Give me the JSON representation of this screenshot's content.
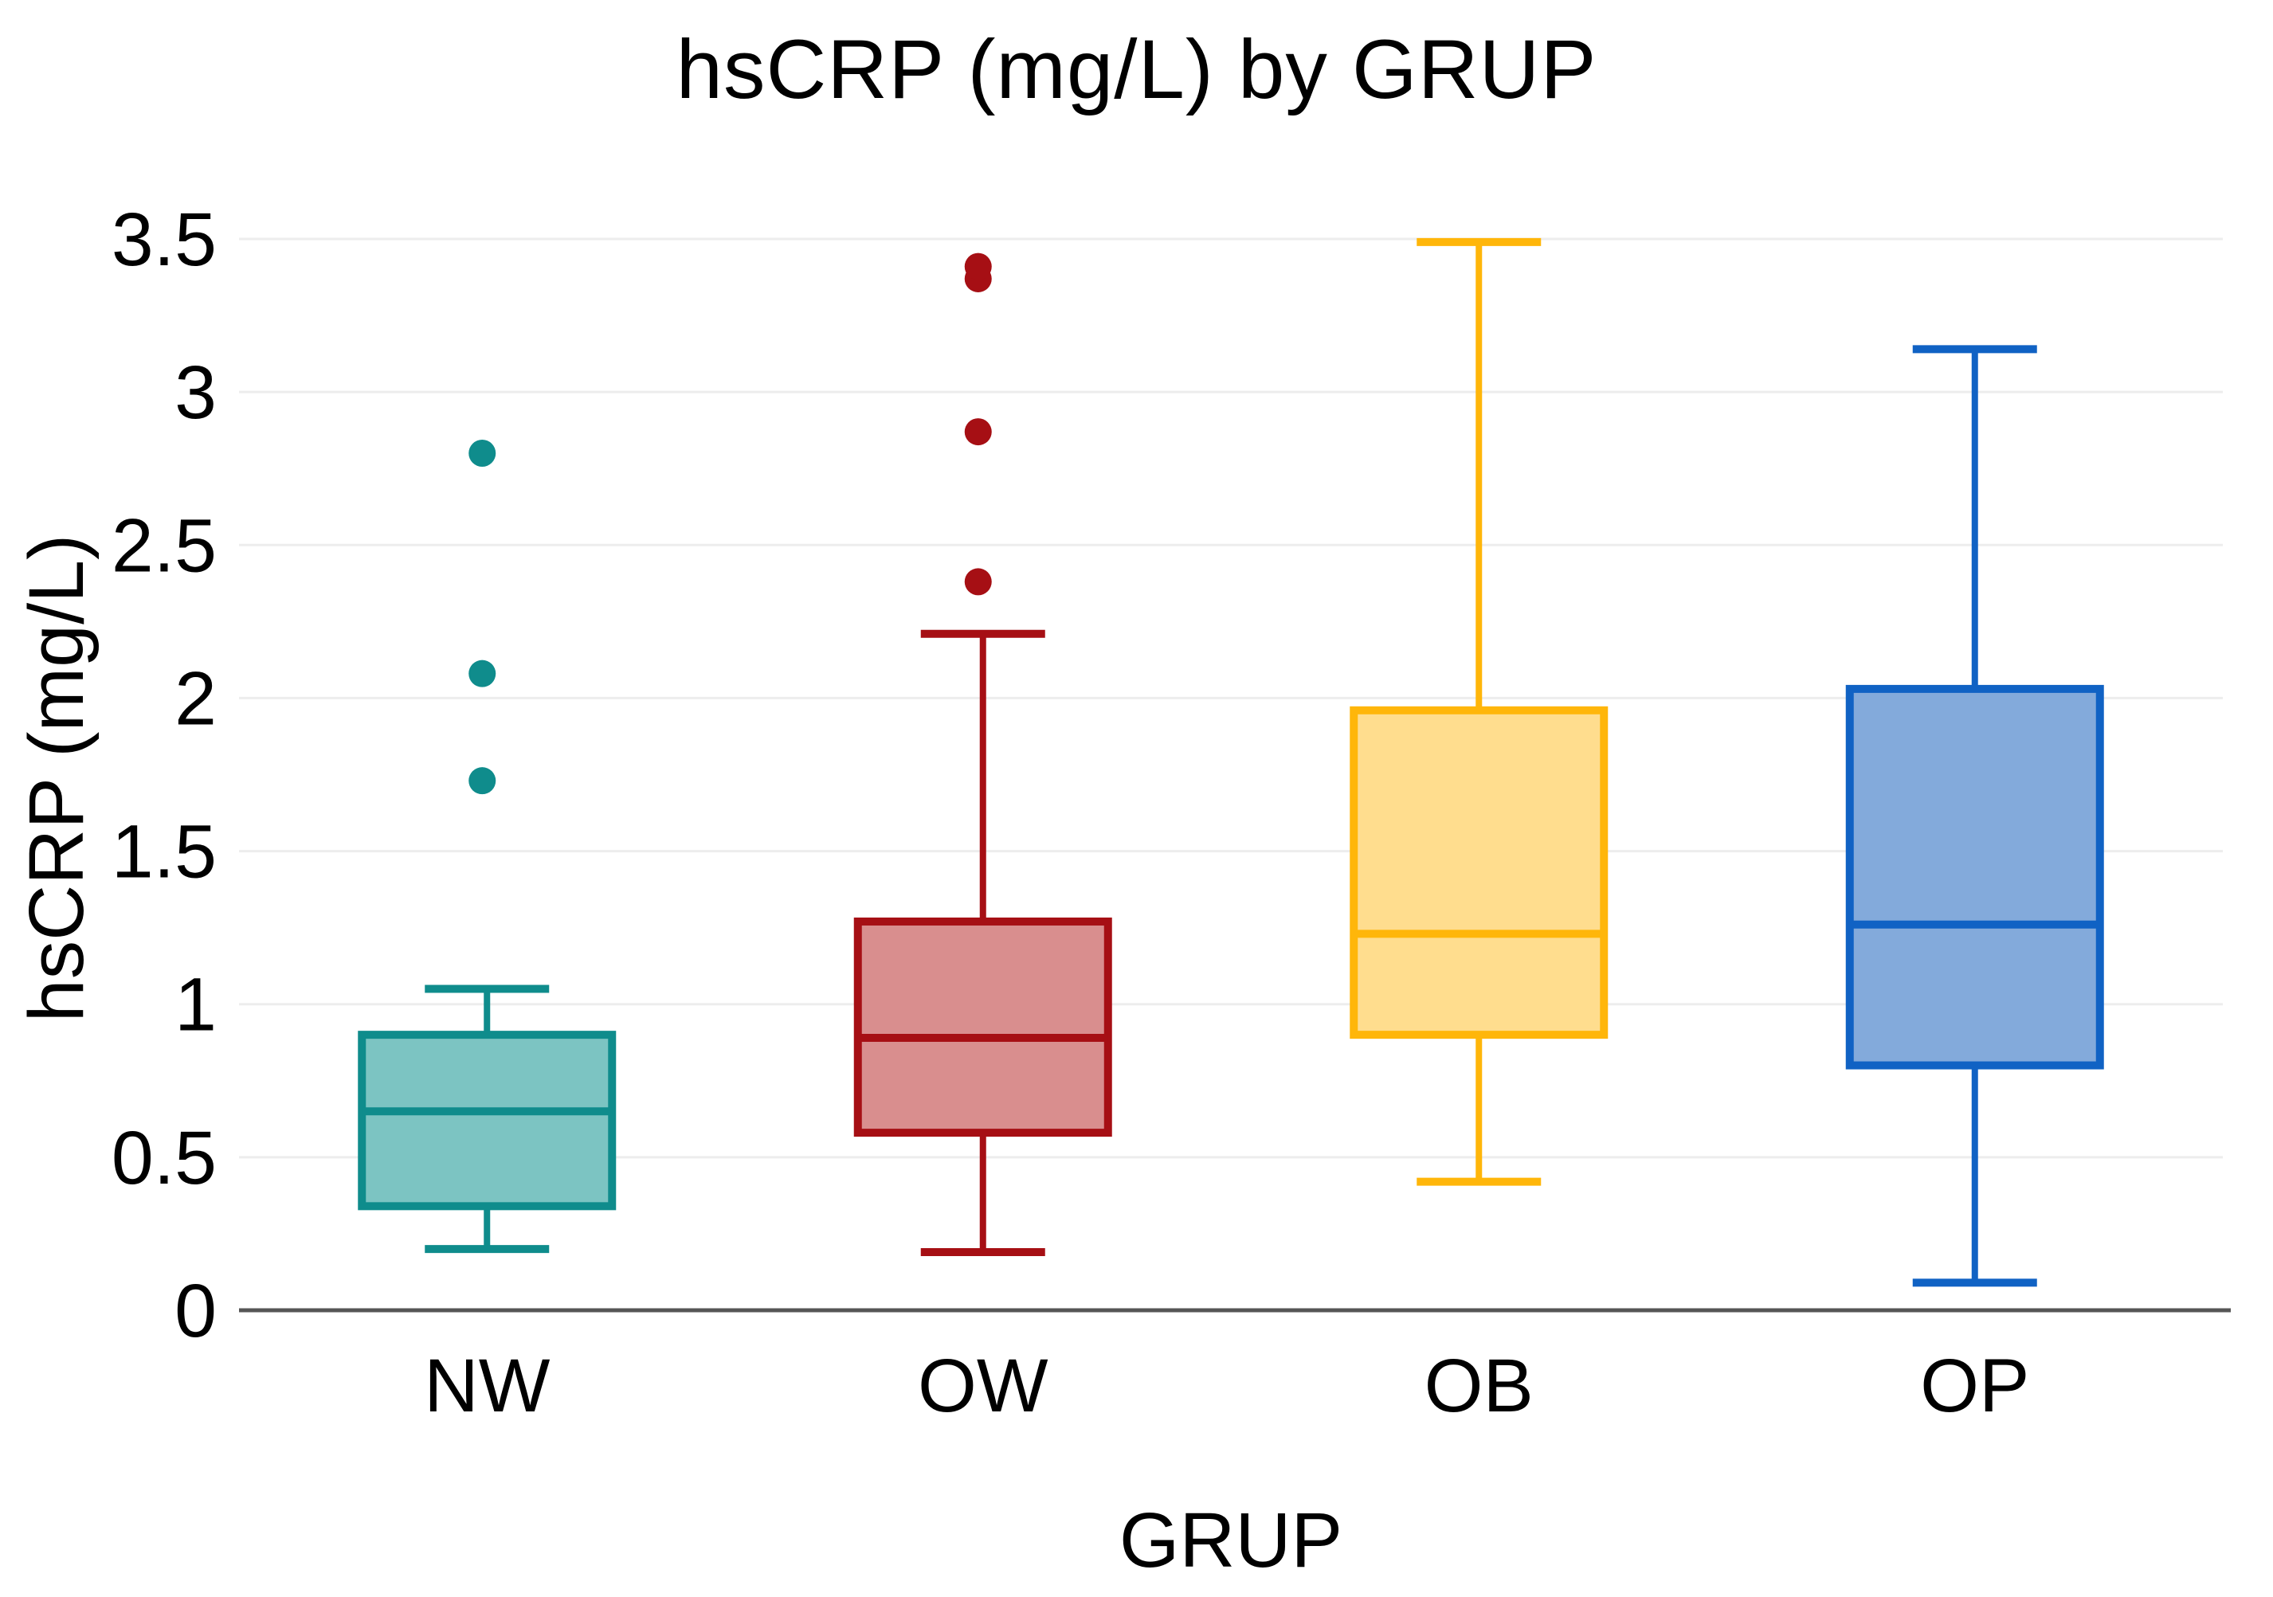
{
  "figure": {
    "title": "hsCRP (mg/L) by GRUP",
    "x_axis_label": "GRUP",
    "y_axis_label": "hsCRP (mg/L)"
  },
  "chart_data": {
    "type": "boxplot",
    "title": "hsCRP (mg/L) by GRUP",
    "xlabel": "GRUP",
    "ylabel": "hsCRP (mg/L)",
    "ylim": [
      0,
      3.5
    ],
    "yticks": [
      0,
      0.5,
      1,
      1.5,
      2,
      2.5,
      3,
      3.5
    ],
    "ytick_labels": [
      "0",
      "0.5",
      "1",
      "1.5",
      "2",
      "2.5",
      "3",
      "3.5"
    ],
    "grid": "horizontal",
    "legend": "none",
    "categories": [
      "NW",
      "OW",
      "OB",
      "OP"
    ],
    "series": [
      {
        "name": "NW",
        "whisker_low": 0.2,
        "q1": 0.34,
        "median": 0.65,
        "q3": 0.9,
        "whisker_high": 1.05,
        "outliers": [
          1.73,
          2.08,
          2.8
        ],
        "stroke": "#0f8c8c",
        "fill": "#7cc4c2"
      },
      {
        "name": "OW",
        "whisker_low": 0.19,
        "q1": 0.58,
        "median": 0.89,
        "q3": 1.27,
        "whisker_high": 2.21,
        "outliers": [
          2.38,
          2.87,
          3.37,
          3.41
        ],
        "stroke": "#a60f14",
        "fill": "#d98e8e"
      },
      {
        "name": "OB",
        "whisker_low": 0.42,
        "q1": 0.9,
        "median": 1.23,
        "q3": 1.96,
        "whisker_high": 3.49,
        "outliers": [],
        "stroke": "#ffb60a",
        "fill": "#ffdd8e"
      },
      {
        "name": "OP",
        "whisker_low": 0.09,
        "q1": 0.8,
        "median": 1.26,
        "q3": 2.03,
        "whisker_high": 3.14,
        "outliers": [],
        "stroke": "#1062c4",
        "fill": "#83aadb"
      }
    ],
    "colors": {
      "grid": "#ededed",
      "axis": "#565656",
      "text": "#000000",
      "background": "#ffffff"
    }
  }
}
